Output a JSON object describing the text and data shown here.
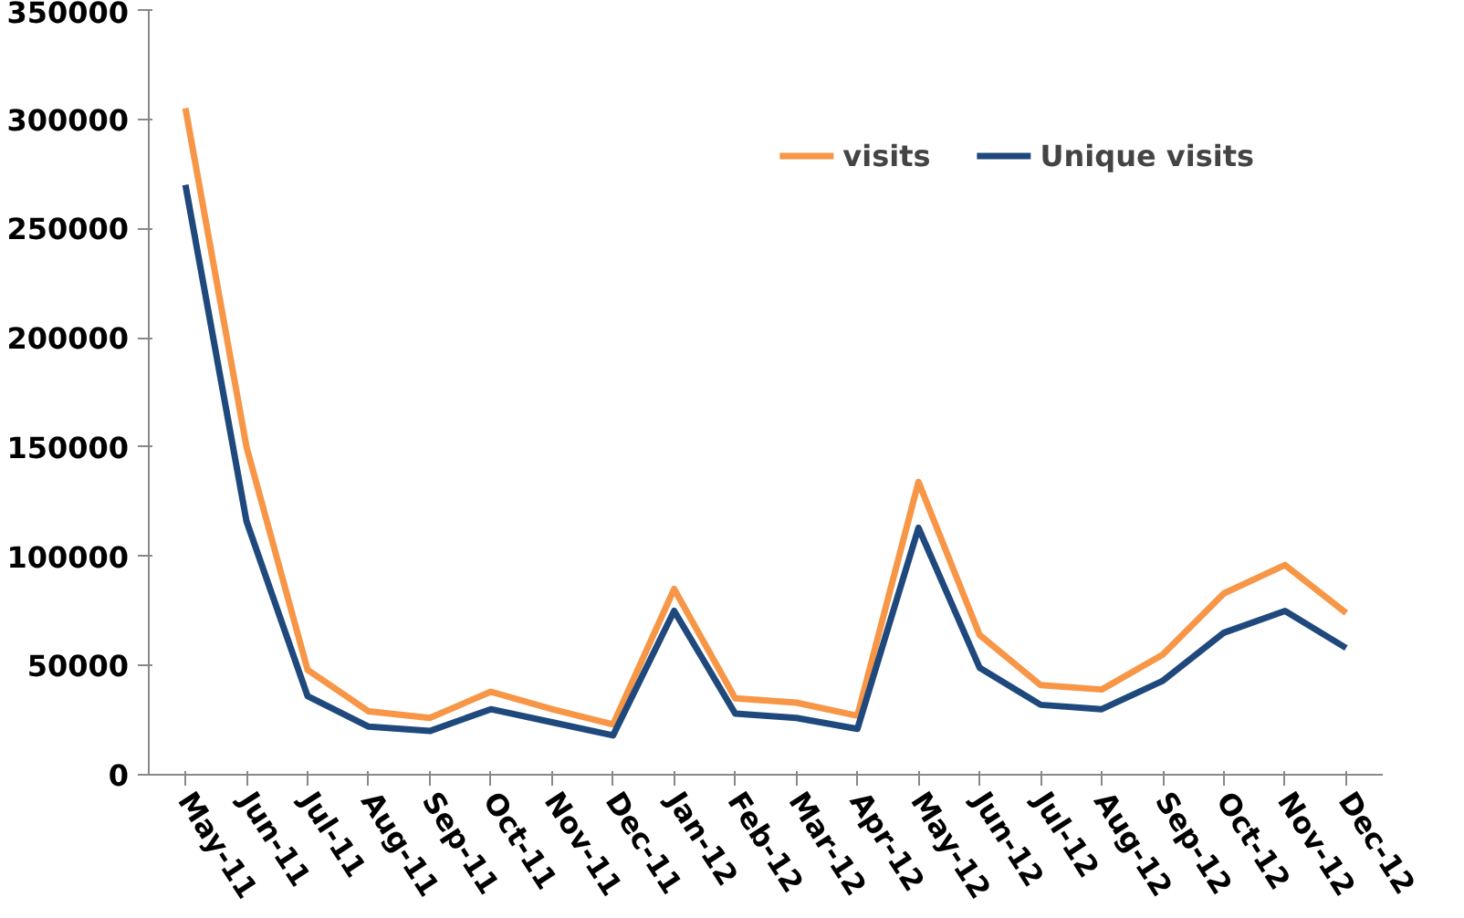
{
  "chart_data": {
    "type": "line",
    "categories": [
      "May-11",
      "Jun-11",
      "Jul-11",
      "Aug-11",
      "Sep-11",
      "Oct-11",
      "Nov-11",
      "Dec-11",
      "Jan-12",
      "Feb-12",
      "Mar-12",
      "Apr-12",
      "May-12",
      "Jun-12",
      "Jul-12",
      "Aug-12",
      "Sep-12",
      "Oct-12",
      "Nov-12",
      "Dec-12"
    ],
    "series": [
      {
        "name": "visits",
        "color": "#f79646",
        "values": [
          305000,
          150000,
          48000,
          29000,
          26000,
          38000,
          30000,
          23000,
          85000,
          35000,
          33000,
          27000,
          134000,
          64000,
          41000,
          39000,
          55000,
          83000,
          96000,
          74000
        ]
      },
      {
        "name": "Unique visits",
        "color": "#1f497d",
        "values": [
          270000,
          116000,
          36000,
          22000,
          20000,
          30000,
          24000,
          18000,
          75000,
          28000,
          26000,
          21000,
          113000,
          49000,
          32000,
          30000,
          43000,
          65000,
          75000,
          58000
        ]
      }
    ],
    "ylim": [
      0,
      350000
    ],
    "yticks": [
      0,
      50000,
      100000,
      150000,
      200000,
      250000,
      300000,
      350000
    ],
    "grid": false,
    "legend": "top right",
    "marker": "none",
    "line_style": "solid"
  }
}
